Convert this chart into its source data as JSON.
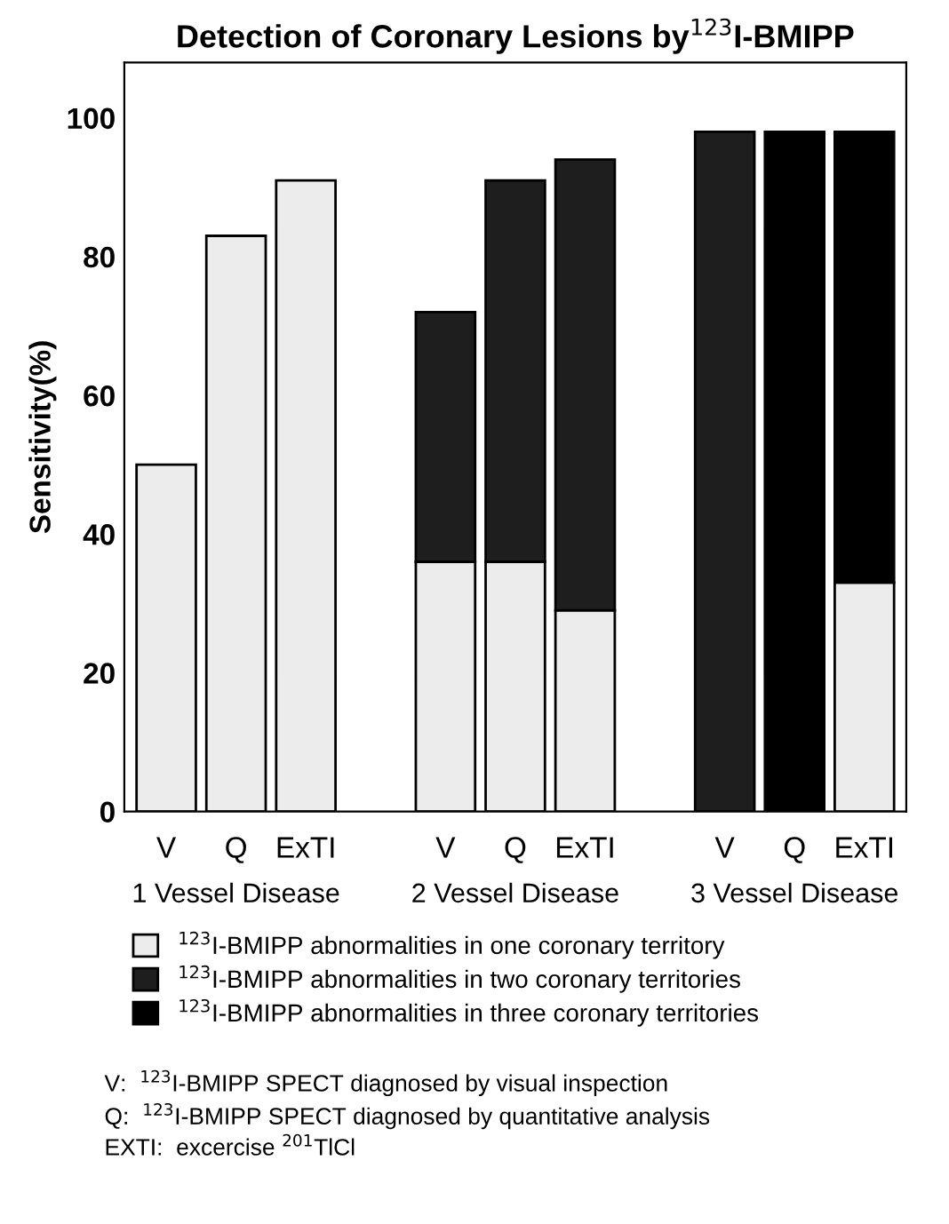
{
  "chart_data": {
    "type": "bar",
    "stacked": true,
    "title": "Detection of Coronary Lesions by$^{123}$I-BMIPP",
    "ylabel": "Sensitivity(%)",
    "categories": [
      "V",
      "Q",
      "ExTI",
      null,
      "V",
      "Q",
      "ExTI",
      null,
      "V",
      "Q",
      "ExTI"
    ],
    "series": [
      {
        "name": "$^{123}$I-BMIPP abnormalities in one coronary territory",
        "color": "#ececec",
        "values": [
          50,
          83,
          91,
          null,
          36,
          36,
          29,
          null,
          null,
          null,
          33
        ]
      },
      {
        "name": "$^{123}$I-BMIPP abnormalities in two coronary territories",
        "color": "#1e1e1e",
        "values": [
          null,
          null,
          null,
          null,
          36,
          55,
          65,
          null,
          98,
          null,
          null
        ]
      },
      {
        "name": "$^{123}$I-BMIPP abnormalities in three coronary territories",
        "color": "#000000",
        "values": [
          null,
          null,
          null,
          null,
          null,
          null,
          null,
          null,
          null,
          98,
          65
        ]
      }
    ],
    "ylim": [
      0,
      108
    ],
    "yticks": [
      0,
      20,
      40,
      60,
      80,
      100
    ],
    "legend": "bottom",
    "annotations": [
      "1 Vessel Disease",
      "2 Vessel Disease",
      "3 Vessel Disease",
      "V:  $^{123}$I-BMIPP SPECT diagnosed by visual inspection",
      "Q:  $^{123}$I-BMIPP SPECT diagnosed by quantitative analysis",
      "EXTI:  excercise $^{201}$TlCl"
    ]
  }
}
